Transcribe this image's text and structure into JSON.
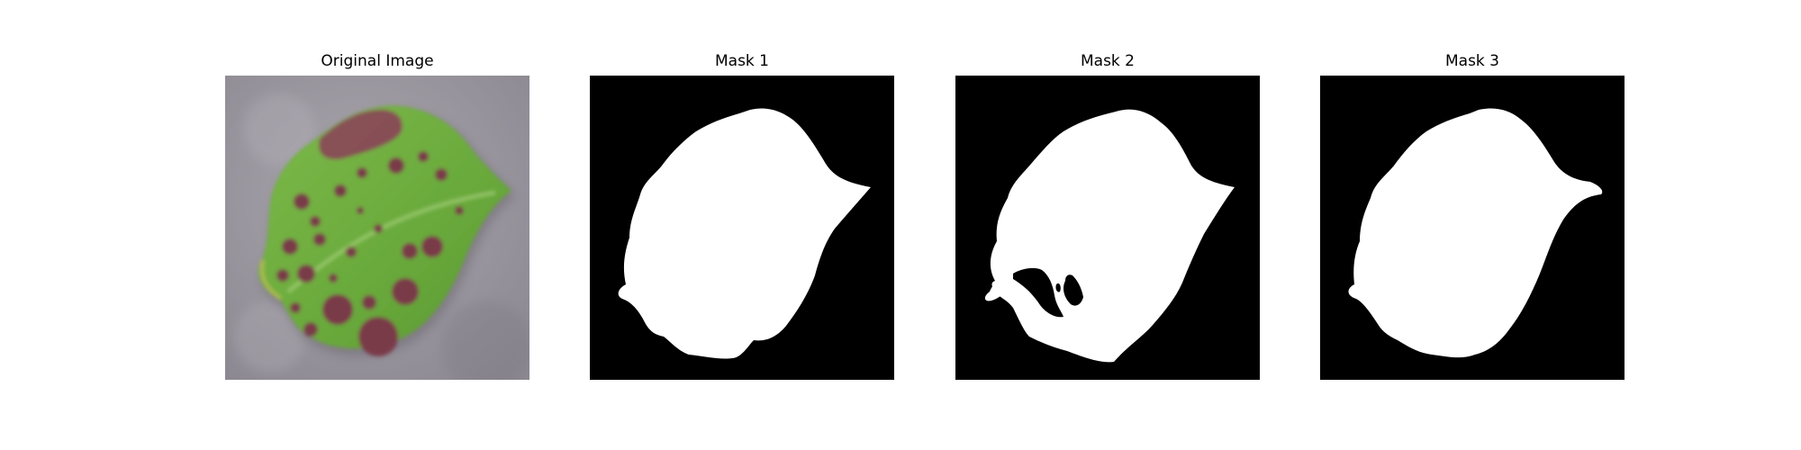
{
  "figure": {
    "panels": [
      {
        "title": "Original Image",
        "kind": "photo",
        "subject": "leaf-with-dark-spots"
      },
      {
        "title": "Mask 1",
        "kind": "mask"
      },
      {
        "title": "Mask 2",
        "kind": "mask"
      },
      {
        "title": "Mask 3",
        "kind": "mask"
      }
    ]
  },
  "colors": {
    "background": "#9c98a1",
    "leaf_green": "#6fae3f",
    "spot_maroon": "#7a3a4a",
    "mask_background": "#000000",
    "mask_foreground": "#ffffff"
  }
}
